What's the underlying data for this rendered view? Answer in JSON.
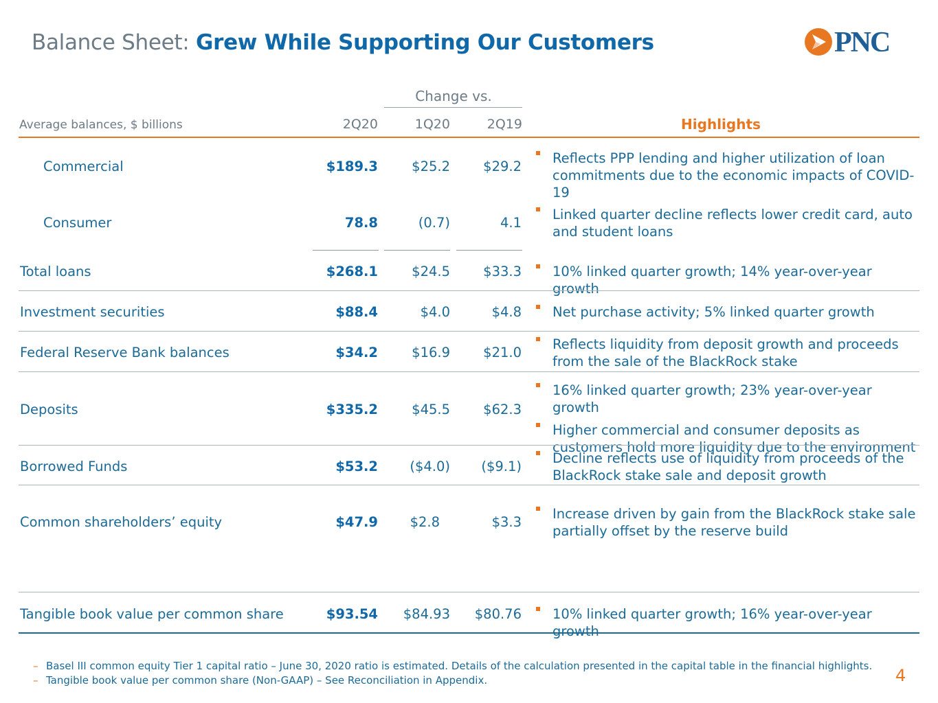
{
  "title": {
    "prefix": "Balance Sheet:",
    "main": "Grew While Supporting Our Customers"
  },
  "logo": {
    "wordmark": "PNC",
    "icon": "pnc-triangle-icon",
    "colors": {
      "orange": "#e87722",
      "blue": "#1f5f97"
    }
  },
  "table": {
    "caption": "Average balances, $ billions",
    "change_header": "Change vs.",
    "columns": [
      "2Q20",
      "1Q20",
      "2Q19"
    ],
    "highlights_header": "Highlights",
    "rows": [
      {
        "label": "Commercial",
        "v1": "$189.3",
        "v2": "$25.2",
        "v3": "$29.2",
        "highlights": [
          "Reflects PPP lending and higher utilization of loan commitments due to the economic impacts of COVID-19"
        ]
      },
      {
        "label": "Consumer",
        "v1": "78.8",
        "v2": "(0.7)",
        "v3": "4.1",
        "highlights": [
          "Linked quarter decline reflects lower credit card, auto and student loans"
        ]
      },
      {
        "label": "Total loans",
        "v1": "$268.1",
        "v2": "$24.5",
        "v3": "$33.3",
        "highlights": [
          "10% linked quarter growth; 14% year-over-year growth"
        ]
      },
      {
        "label": "Investment securities",
        "v1": "$88.4",
        "v2": "$4.0",
        "v3": "$4.8",
        "highlights": [
          "Net purchase activity; 5% linked quarter growth"
        ]
      },
      {
        "label": "Federal Reserve Bank balances",
        "v1": "$34.2",
        "v2": "$16.9",
        "v3": "$21.0",
        "highlights": [
          "Reflects liquidity  from deposit growth and proceeds from the sale of the BlackRock stake"
        ]
      },
      {
        "label": "Deposits",
        "v1": "$335.2",
        "v2": "$45.5",
        "v3": "$62.3",
        "highlights": [
          "16% linked quarter growth; 23% year-over-year growth",
          "Higher commercial and consumer deposits as customers hold more liquidity due to the environment"
        ]
      },
      {
        "label": "Borrowed Funds",
        "v1": "$53.2",
        "v2": "($4.0)",
        "v3": "($9.1)",
        "highlights": [
          "Decline reflects use of liquidity from proceeds of the BlackRock stake sale and deposit growth"
        ]
      },
      {
        "label": "Common shareholders’ equity",
        "v1": "$47.9",
        "v2": "$2.8",
        "v3": "$3.3",
        "highlights": [
          "Increase driven by gain from the BlackRock stake sale partially offset by the reserve build"
        ]
      },
      {
        "label": "Tangible book value per common share",
        "v1": "$93.54",
        "v2": "$84.93",
        "v3": "$80.76",
        "highlights": [
          "10% linked quarter growth; 16% year-over-year growth"
        ]
      }
    ]
  },
  "footnotes": [
    "Basel III common equity Tier 1 capital ratio – June 30, 2020 ratio is estimated. Details of the calculation presented in the capital table in the financial highlights.",
    "Tangible book value per common share (Non-GAAP) – See Reconciliation in Appendix."
  ],
  "page_number": "4",
  "colors": {
    "accent": "#e87722",
    "primary": "#1b6a97",
    "muted": "#6d7b86"
  }
}
